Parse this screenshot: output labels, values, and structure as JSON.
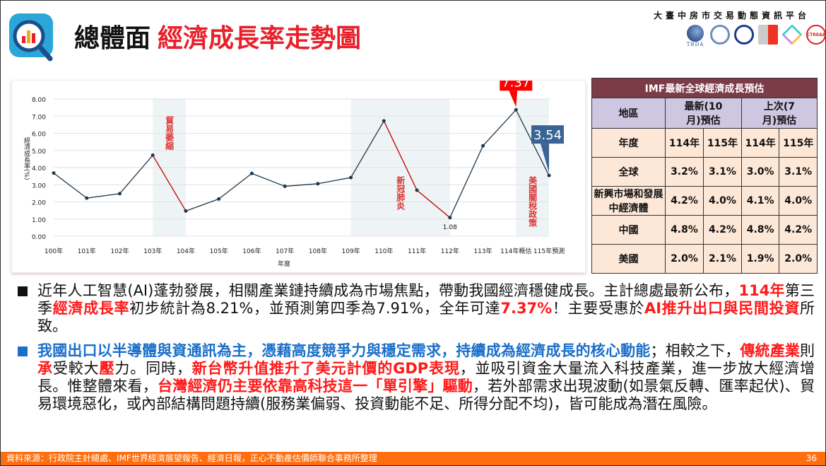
{
  "header": {
    "title_main": "總體面",
    "title_sub": "經濟成長率走勢圖",
    "platform": "大臺中房市交易動態資訊平台",
    "partner_logos": [
      "TRDA",
      "housing-logo",
      "gov-seal-logo",
      "zhong-logo",
      "diamond-logo",
      "CTREAA"
    ]
  },
  "chart_data": {
    "type": "line",
    "x": [
      "100年",
      "101年",
      "102年",
      "103年",
      "104年",
      "105年",
      "106年",
      "107年",
      "108年",
      "109年",
      "110年",
      "111年",
      "112年",
      "113年",
      "114年概估",
      "115年預測"
    ],
    "values": [
      3.68,
      2.22,
      2.48,
      4.72,
      1.47,
      2.17,
      3.66,
      2.91,
      3.06,
      3.42,
      6.72,
      2.68,
      1.08,
      5.27,
      7.37,
      3.54
    ],
    "xlabel": "年度",
    "ylabel": "經濟成長率(%)",
    "ylim": [
      0,
      8
    ],
    "yticks": [
      "0.00",
      "1.00",
      "2.00",
      "3.00",
      "4.00",
      "5.00",
      "6.00",
      "7.00",
      "8.00"
    ],
    "grid": true,
    "line_color": "#1f3a4d",
    "highlight_color": "#c00000",
    "highlight_segments": [
      [
        3,
        4
      ],
      [
        10,
        11
      ],
      [
        11,
        12
      ]
    ],
    "shaded_ranges": [
      {
        "from": 3,
        "to": 4,
        "label": "貿易萎縮"
      },
      {
        "from": 9,
        "to": 12,
        "label": "新冠肺炎"
      },
      {
        "from": 14,
        "to": 15,
        "label": "美國關稅政策"
      }
    ],
    "callouts": [
      {
        "index": 14,
        "text": "7.37",
        "color": "#ff0000"
      },
      {
        "index": 15,
        "text": "3.54",
        "color": "#3a6496"
      }
    ],
    "data_labels": [
      {
        "index": 12,
        "text": "1.08"
      }
    ]
  },
  "table": {
    "title": "IMF最新全球經濟成長預估",
    "header": [
      "地區",
      "最新(10月)預估",
      "上次(7月)預估"
    ],
    "year_row": [
      "年度",
      "114年",
      "115年",
      "114年",
      "115年"
    ],
    "rows": [
      [
        "全球",
        "3.2%",
        "3.1%",
        "3.0%",
        "3.1%"
      ],
      [
        "新興市場和發展中經濟體",
        "4.2%",
        "4.0%",
        "4.1%",
        "4.0%"
      ],
      [
        "中國",
        "4.8%",
        "4.2%",
        "4.8%",
        "4.2%"
      ],
      [
        "美國",
        "2.0%",
        "2.1%",
        "1.9%",
        "2.0%"
      ]
    ]
  },
  "paragraphs": [
    {
      "bullet_color": "#111111",
      "segments": [
        {
          "t": "近年人工智慧(AI)蓬勃發展，相關產業鏈持續成為市場焦點，帶動我國經濟穩健成長。主計總處最新公布，",
          "s": ""
        },
        {
          "t": "114年",
          "s": "red"
        },
        {
          "t": "第三季",
          "s": ""
        },
        {
          "t": "經濟成長率",
          "s": "red"
        },
        {
          "t": "初步統計為8.21%，並預測第四季為7.91%，全年可達",
          "s": ""
        },
        {
          "t": "7.37%",
          "s": "red"
        },
        {
          "t": "！主要受惠於",
          "s": ""
        },
        {
          "t": "AI推升出口與民間投資",
          "s": "red"
        },
        {
          "t": "所致。",
          "s": ""
        }
      ]
    },
    {
      "bullet_color": "#1a6fc9",
      "segments": [
        {
          "t": "我國出口以半導體與資通訊為主，憑藉高度競爭力與穩定需求，持續成為經濟成長的核心動能",
          "s": "blue"
        },
        {
          "t": "；相較之下，",
          "s": ""
        },
        {
          "t": "傳統產業",
          "s": "red"
        },
        {
          "t": "則",
          "s": ""
        },
        {
          "t": "承",
          "s": "red"
        },
        {
          "t": "受較大",
          "s": ""
        },
        {
          "t": "壓",
          "s": "red"
        },
        {
          "t": "力。同時，",
          "s": ""
        },
        {
          "t": "新台幣升值推升了美元計價的GDP表現",
          "s": "red"
        },
        {
          "t": "，並吸引資金大量流入科技產業，進一步放大經濟增長。惟整體來看，",
          "s": ""
        },
        {
          "t": "台灣經濟仍主要依靠高科技這一「單引擎」驅動",
          "s": "red"
        },
        {
          "t": "，若外部需求出現波動(如景氣反轉、匯率起伏)、貿易環境惡化，或內部結構問題持續(服務業偏弱、投資動能不足、所得分配不均)，皆可能成為潛在風險。",
          "s": ""
        }
      ]
    }
  ],
  "footer": {
    "source": "資料來源：行政院主計總處、IMF世界經濟展望報告、經濟日報，正心不動產估價師聯合事務所整理",
    "page": "36"
  }
}
